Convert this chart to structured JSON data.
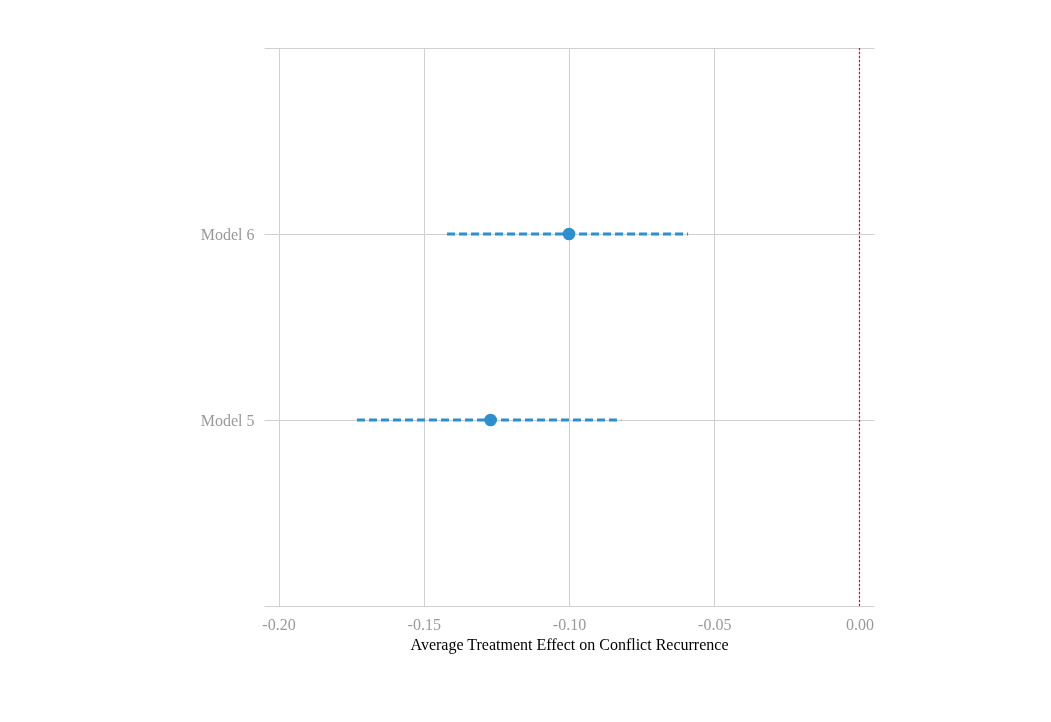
{
  "chart_data": {
    "type": "scatter",
    "orientation": "horizontal",
    "xlabel": "Average Treatment Effect on Conflict Recurrence",
    "categories": [
      null,
      "Model 6",
      "Model 5",
      null
    ],
    "values": [
      null,
      -0.1,
      -0.127,
      null
    ],
    "errors": [
      null,
      [
        -0.142,
        -0.059
      ],
      [
        -0.173,
        -0.082
      ],
      null
    ],
    "color": "#2b8fd0",
    "marker": "circle",
    "line_style": "dashed",
    "xlim": [
      -0.205,
      0.005
    ],
    "xticks": [
      {
        "value": -0.2,
        "label": "-0.20"
      },
      {
        "value": -0.15,
        "label": "-0.15"
      },
      {
        "value": -0.1,
        "label": "-0.10"
      },
      {
        "value": -0.05,
        "label": "-0.05"
      },
      {
        "value": 0,
        "label": "0.00"
      }
    ],
    "ref_lines": [
      {
        "axis": "x",
        "value": 0,
        "label": null,
        "color": "#ff0000",
        "line_style": "dotted"
      }
    ],
    "grid": true
  }
}
